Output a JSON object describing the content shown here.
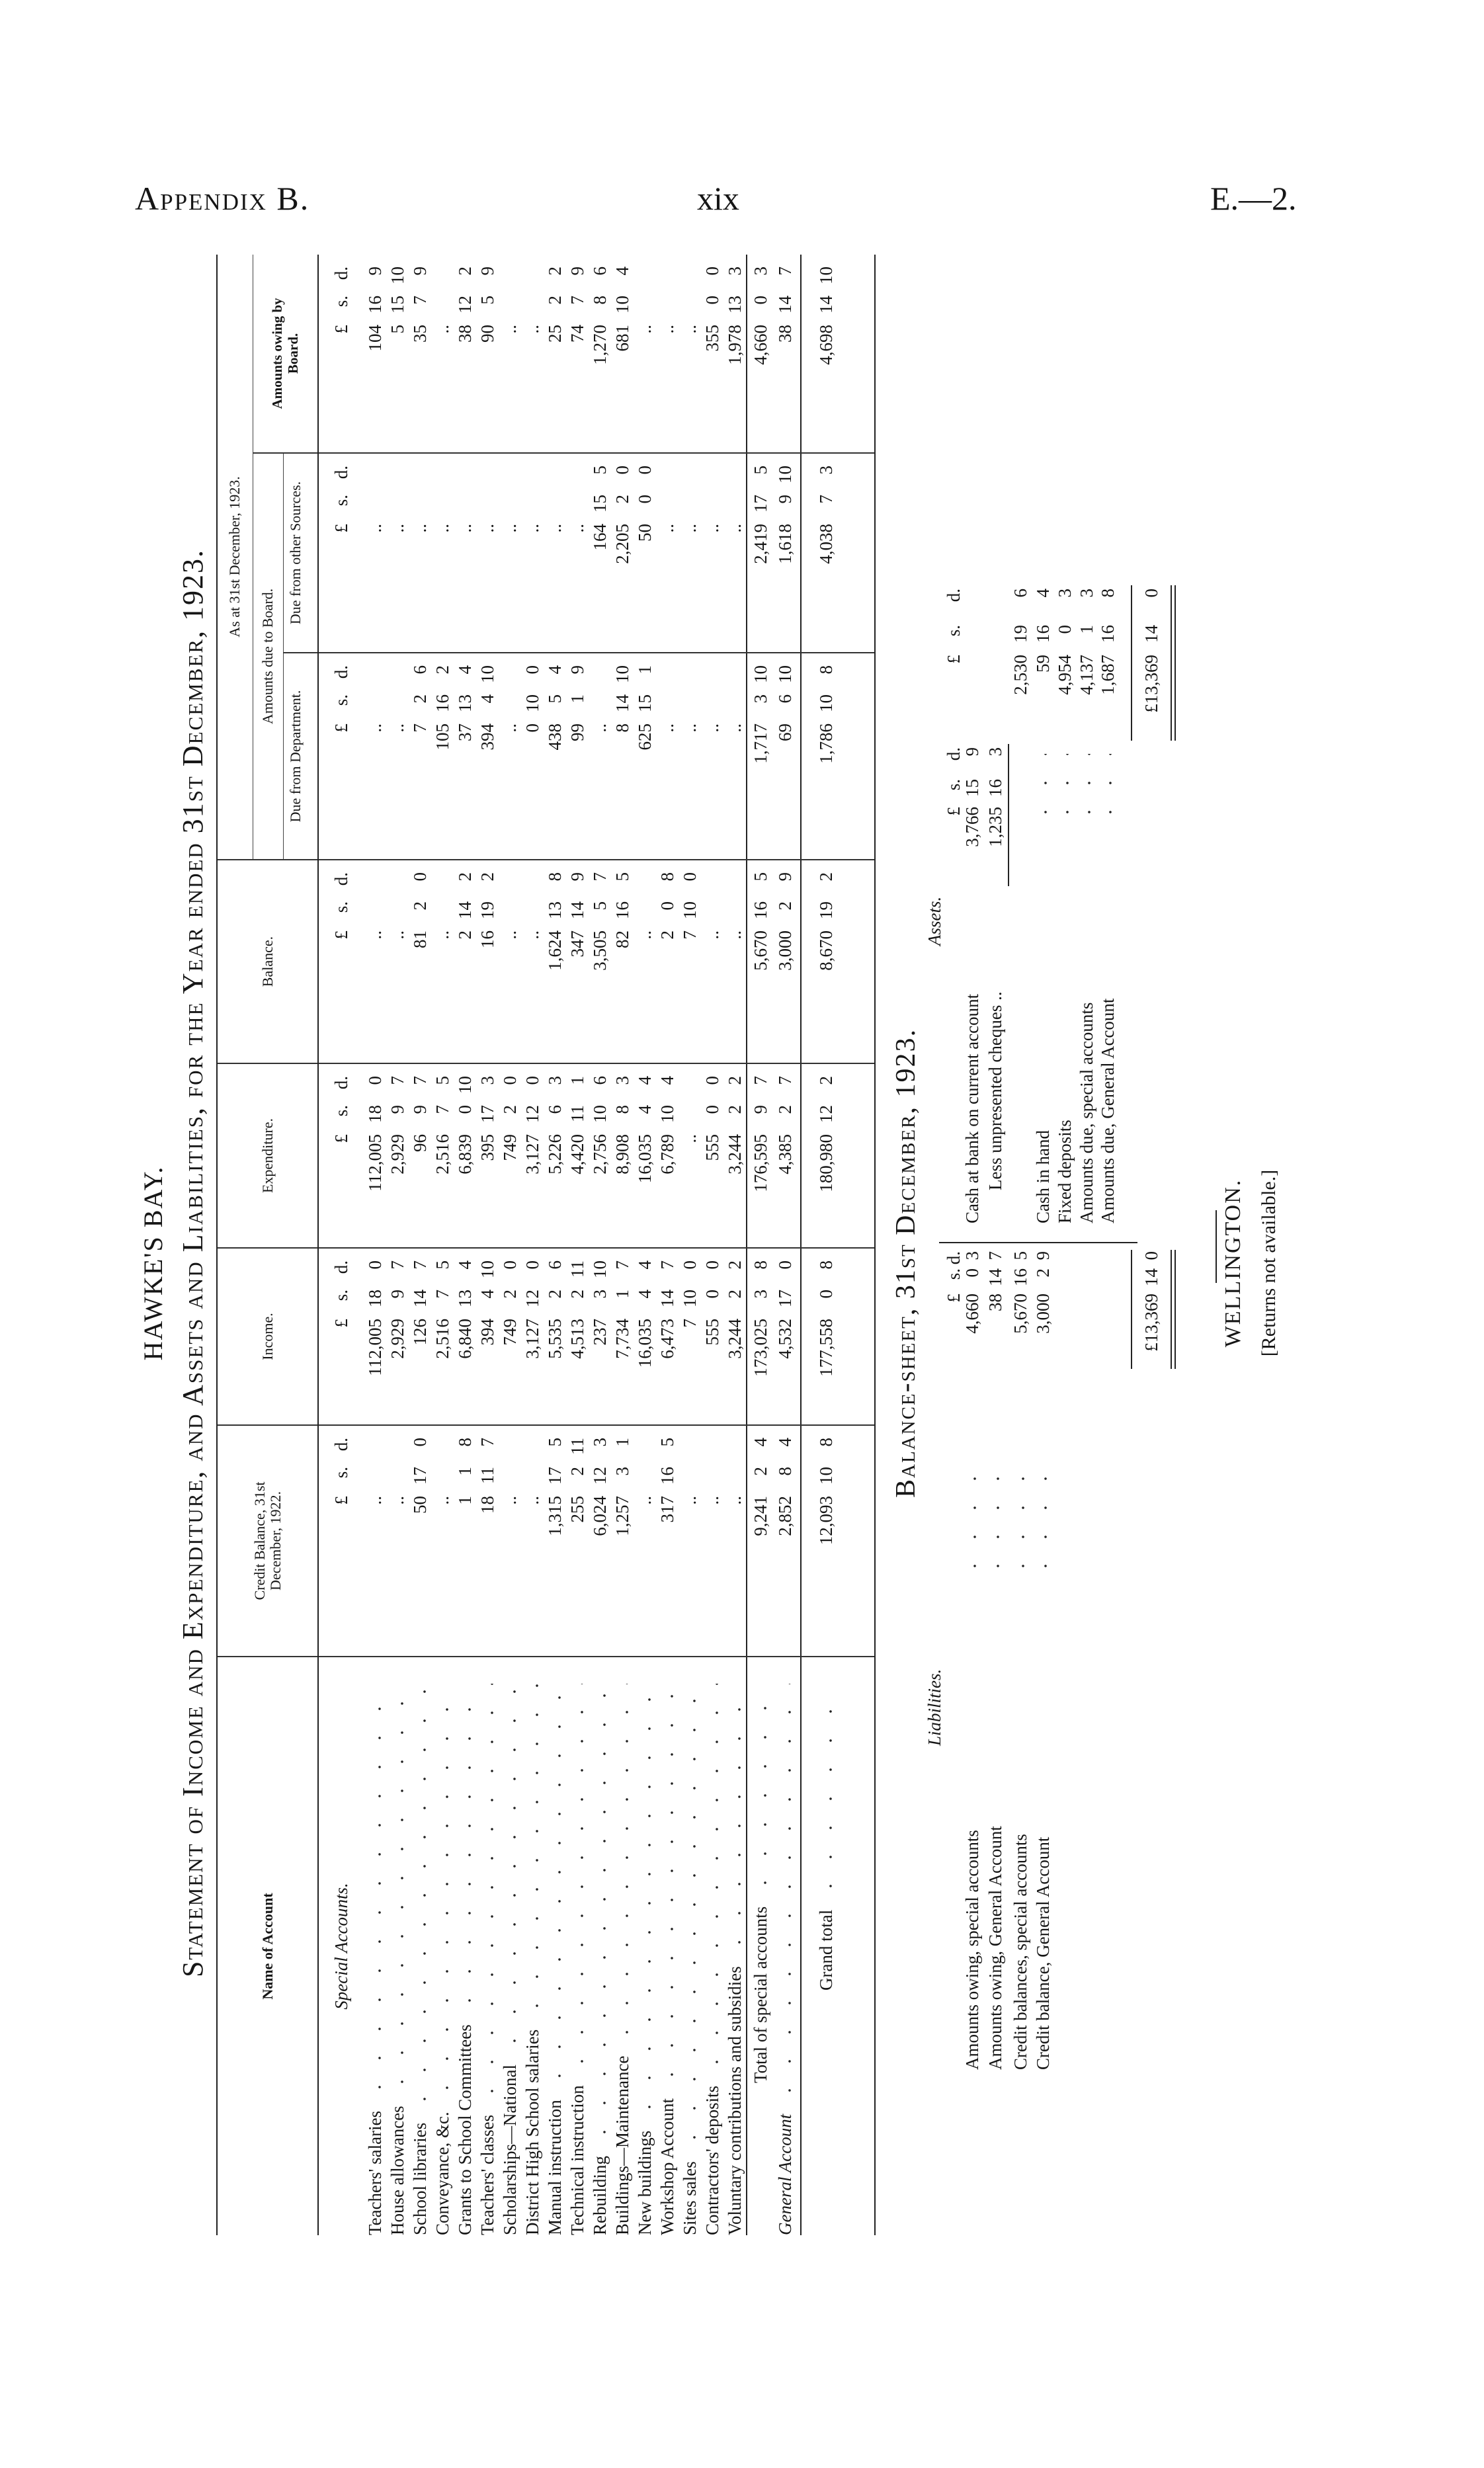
{
  "page_header": {
    "left": "Appendix B.",
    "center": "xix",
    "right": "E.—2."
  },
  "titles": {
    "county": "HAWKE'S BAY.",
    "statement": "Statement of Income and Expenditure, and Assets and Liabilities, for the Year ended 31st December, 1923."
  },
  "statement": {
    "headers": {
      "name": "Name of Account",
      "credit": "Credit Balance, 31st December, 1922.",
      "income": "Income.",
      "expenditure": "Expenditure.",
      "balance": "Balance.",
      "as_at": "As at 31st December, 1923.",
      "due_to_board": "Amounts due to Board.",
      "due_dept": "Due from Department.",
      "due_other": "Due from other Sources.",
      "owing": "Amounts owing by Board."
    },
    "units": [
      "£",
      "s.",
      "d."
    ],
    "section_label": "Special Accounts.",
    "rows": [
      {
        "name": "Teachers' salaries",
        "v": [
          [
            ".."
          ],
          [
            "112,005",
            "18",
            "0"
          ],
          [
            "112,005",
            "18",
            "0"
          ],
          [
            ".."
          ],
          [
            ".."
          ],
          [
            ".."
          ],
          [
            "104",
            "16",
            "9"
          ]
        ]
      },
      {
        "name": "House allowances",
        "v": [
          [
            ".."
          ],
          [
            "2,929",
            "9",
            "7"
          ],
          [
            "2,929",
            "9",
            "7"
          ],
          [
            ".."
          ],
          [
            ".."
          ],
          [
            ".."
          ],
          [
            "5",
            "15",
            "10"
          ]
        ]
      },
      {
        "name": "School libraries",
        "v": [
          [
            "50",
            "17",
            "0"
          ],
          [
            "126",
            "14",
            "7"
          ],
          [
            "96",
            "9",
            "7"
          ],
          [
            "81",
            "2",
            "0"
          ],
          [
            "7",
            "2",
            "6"
          ],
          [
            ".."
          ],
          [
            "35",
            "7",
            "9"
          ]
        ]
      },
      {
        "name": "Conveyance, &c.",
        "v": [
          [
            ".."
          ],
          [
            "2,516",
            "7",
            "5"
          ],
          [
            "2,516",
            "7",
            "5"
          ],
          [
            ".."
          ],
          [
            "105",
            "16",
            "2"
          ],
          [
            ".."
          ],
          [
            ".."
          ]
        ]
      },
      {
        "name": "Grants to School Committees",
        "v": [
          [
            "1",
            "1",
            "8"
          ],
          [
            "6,840",
            "13",
            "4"
          ],
          [
            "6,839",
            "0",
            "10"
          ],
          [
            "2",
            "14",
            "2"
          ],
          [
            "37",
            "13",
            "4"
          ],
          [
            ".."
          ],
          [
            "38",
            "12",
            "2"
          ]
        ]
      },
      {
        "name": "Teachers' classes",
        "v": [
          [
            "18",
            "11",
            "7"
          ],
          [
            "394",
            "4",
            "10"
          ],
          [
            "395",
            "17",
            "3"
          ],
          [
            "16",
            "19",
            "2"
          ],
          [
            "394",
            "4",
            "10"
          ],
          [
            ".."
          ],
          [
            "90",
            "5",
            "9"
          ]
        ]
      },
      {
        "name": "Scholarships—National",
        "v": [
          [
            ".."
          ],
          [
            "749",
            "2",
            "0"
          ],
          [
            "749",
            "2",
            "0"
          ],
          [
            ".."
          ],
          [
            ".."
          ],
          [
            ".."
          ],
          [
            ".."
          ]
        ]
      },
      {
        "name": "District High School salaries",
        "v": [
          [
            ".."
          ],
          [
            "3,127",
            "12",
            "0"
          ],
          [
            "3,127",
            "12",
            "0"
          ],
          [
            ".."
          ],
          [
            "0",
            "10",
            "0"
          ],
          [
            ".."
          ],
          [
            ".."
          ]
        ]
      },
      {
        "name": "Manual instruction",
        "v": [
          [
            "1,315",
            "17",
            "5"
          ],
          [
            "5,535",
            "2",
            "6"
          ],
          [
            "5,226",
            "6",
            "3"
          ],
          [
            "1,624",
            "13",
            "8"
          ],
          [
            "438",
            "5",
            "4"
          ],
          [
            ".."
          ],
          [
            "25",
            "2",
            "2"
          ]
        ]
      },
      {
        "name": "Technical instruction",
        "v": [
          [
            "255",
            "2",
            "11"
          ],
          [
            "4,513",
            "2",
            "11"
          ],
          [
            "4,420",
            "11",
            "1"
          ],
          [
            "347",
            "14",
            "9"
          ],
          [
            "99",
            "1",
            "9"
          ],
          [
            ".."
          ],
          [
            "74",
            "7",
            "9"
          ]
        ]
      },
      {
        "name": "Rebuilding",
        "v": [
          [
            "6,024",
            "12",
            "3"
          ],
          [
            "237",
            "3",
            "10"
          ],
          [
            "2,756",
            "10",
            "6"
          ],
          [
            "3,505",
            "5",
            "7"
          ],
          [
            ".."
          ],
          [
            "164",
            "15",
            "5"
          ],
          [
            "1,270",
            "8",
            "6"
          ]
        ]
      },
      {
        "name": "Buildings—Maintenance",
        "v": [
          [
            "1,257",
            "3",
            "1"
          ],
          [
            "7,734",
            "1",
            "7"
          ],
          [
            "8,908",
            "8",
            "3"
          ],
          [
            "82",
            "16",
            "5"
          ],
          [
            "8",
            "14",
            "10"
          ],
          [
            "2,205",
            "2",
            "0"
          ],
          [
            "681",
            "10",
            "4"
          ]
        ]
      },
      {
        "name": "New buildings",
        "v": [
          [
            ".."
          ],
          [
            "16,035",
            "4",
            "4"
          ],
          [
            "16,035",
            "4",
            "4"
          ],
          [
            ".."
          ],
          [
            "625",
            "15",
            "1"
          ],
          [
            "50",
            "0",
            "0"
          ],
          [
            ".."
          ]
        ]
      },
      {
        "name": "Workshop Account",
        "v": [
          [
            "317",
            "16",
            "5"
          ],
          [
            "6,473",
            "14",
            "7"
          ],
          [
            "6,789",
            "10",
            "4"
          ],
          [
            "2",
            "0",
            "8"
          ],
          [
            ".."
          ],
          [
            ".."
          ],
          [
            ".."
          ]
        ]
      },
      {
        "name": "Sites sales",
        "v": [
          [
            ".."
          ],
          [
            "7",
            "10",
            "0"
          ],
          [
            ".."
          ],
          [
            "7",
            "10",
            "0"
          ],
          [
            ".."
          ],
          [
            ".."
          ],
          [
            ".."
          ]
        ]
      },
      {
        "name": "Contractors' deposits",
        "v": [
          [
            ".."
          ],
          [
            "555",
            "0",
            "0"
          ],
          [
            "555",
            "0",
            "0"
          ],
          [
            ".."
          ],
          [
            ".."
          ],
          [
            ".."
          ],
          [
            "355",
            "0",
            "0"
          ]
        ]
      },
      {
        "name": "Voluntary contributions and subsidies",
        "v": [
          [
            ".."
          ],
          [
            "3,244",
            "2",
            "2"
          ],
          [
            "3,244",
            "2",
            "2"
          ],
          [
            ".."
          ],
          [
            ".."
          ],
          [
            ".."
          ],
          [
            "1,978",
            "13",
            "3"
          ]
        ]
      }
    ],
    "total_special": {
      "name": "Total of special accounts",
      "v": [
        [
          "9,241",
          "2",
          "4"
        ],
        [
          "173,025",
          "3",
          "8"
        ],
        [
          "176,595",
          "9",
          "7"
        ],
        [
          "5,670",
          "16",
          "5"
        ],
        [
          "1,717",
          "3",
          "10"
        ],
        [
          "2,419",
          "17",
          "5"
        ],
        [
          "4,660",
          "0",
          "3"
        ]
      ]
    },
    "general": {
      "name": "General Account",
      "v": [
        [
          "2,852",
          "8",
          "4"
        ],
        [
          "4,532",
          "17",
          "0"
        ],
        [
          "4,385",
          "2",
          "7"
        ],
        [
          "3,000",
          "2",
          "9"
        ],
        [
          "69",
          "6",
          "10"
        ],
        [
          "1,618",
          "9",
          "10"
        ],
        [
          "38",
          "14",
          "7"
        ]
      ]
    },
    "grand": {
      "name": "Grand total",
      "v": [
        [
          "12,093",
          "10",
          "8"
        ],
        [
          "177,558",
          "0",
          "8"
        ],
        [
          "180,980",
          "12",
          "2"
        ],
        [
          "8,670",
          "19",
          "2"
        ],
        [
          "1,786",
          "10",
          "8"
        ],
        [
          "4,038",
          "7",
          "3"
        ],
        [
          "4,698",
          "14",
          "10"
        ]
      ]
    }
  },
  "balance_sheet": {
    "title": "Balance-sheet, 31st December, 1923.",
    "liabilities_label": "Liabilities.",
    "assets_label": "Assets.",
    "units": [
      "£",
      "s.",
      "d."
    ],
    "liabilities": [
      {
        "label": "Amounts owing, special accounts",
        "v": [
          "4,660",
          "0",
          "3"
        ]
      },
      {
        "label": "Amounts owing, General Account",
        "v": [
          "38",
          "14",
          "7"
        ]
      },
      {
        "label": "Credit balances, special accounts",
        "v": [
          "5,670",
          "16",
          "5"
        ]
      },
      {
        "label": "Credit balance, General Account",
        "v": [
          "3,000",
          "2",
          "9"
        ]
      }
    ],
    "liabilities_total": [
      "£13,369",
      "14",
      "0"
    ],
    "assets": [
      {
        "label": "Cash at bank on current account",
        "inner": [
          "3,766",
          "15",
          "9"
        ]
      },
      {
        "label": "Less unpresented cheques ..",
        "inner": [
          "1,235",
          "16",
          "3"
        ]
      },
      {
        "label": "",
        "outer": [
          "2,530",
          "19",
          "6"
        ]
      },
      {
        "label": "Cash in hand",
        "outer": [
          "59",
          "16",
          "4"
        ]
      },
      {
        "label": "Fixed deposits",
        "outer": [
          "4,954",
          "0",
          "3"
        ]
      },
      {
        "label": "Amounts due, special accounts",
        "outer": [
          "4,137",
          "1",
          "3"
        ]
      },
      {
        "label": "Amounts due, General Account",
        "outer": [
          "1,687",
          "16",
          "8"
        ]
      }
    ],
    "assets_total": [
      "£13,369",
      "14",
      "0"
    ]
  },
  "footer": {
    "city": "WELLINGTON.",
    "note": "[Returns not available.]"
  }
}
